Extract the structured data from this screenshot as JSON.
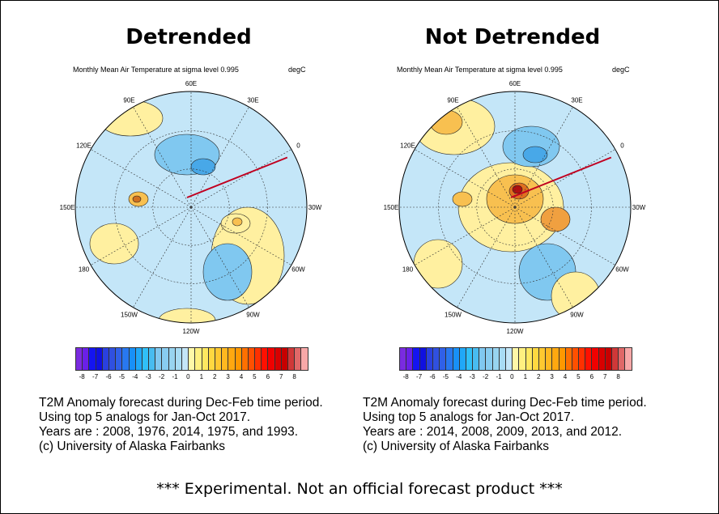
{
  "panels": [
    {
      "title": "Detrended",
      "subtitle": "Monthly Mean Air Temperature at sigma level 0.995",
      "units": "degC",
      "caption": [
        "T2M Anomaly forecast during Dec-Feb time period.",
        "Using top 5 analogs for Jan-Oct 2017.",
        "Years are : 2008, 1976, 2014, 1975, and 1993.",
        "(c) University of Alaska Fairbanks"
      ]
    },
    {
      "title": "Not Detrended",
      "subtitle": "Monthly Mean Air Temperature at sigma level 0.995",
      "units": "degC",
      "caption": [
        "T2M Anomaly forecast during Dec-Feb time period.",
        "Using top 5 analogs for Jan-Oct 2017.",
        "Years are : 2014, 2008, 2009, 2013, and 2012.",
        "(c) University of Alaska Fairbanks"
      ]
    }
  ],
  "longitude_labels": [
    "60E",
    "30E",
    "0",
    "30W",
    "60W",
    "90W",
    "120W",
    "150W",
    "180",
    "150E",
    "120E",
    "90E"
  ],
  "colorbar": {
    "ticks": [
      "-8",
      "-7",
      "-6",
      "-5",
      "-4",
      "-3",
      "-2",
      "-1",
      "0",
      "1",
      "2",
      "3",
      "4",
      "5",
      "6",
      "7",
      "8"
    ],
    "colors": [
      "#7a2be0",
      "#6a20e8",
      "#1414f0",
      "#1010e0",
      "#2a40e0",
      "#3050e0",
      "#3060e8",
      "#2878f0",
      "#1890f8",
      "#20a8f8",
      "#30c0f8",
      "#48bcf0",
      "#80c8f0",
      "#88ccf0",
      "#98d4f0",
      "#a8dcf4",
      "#c4e6f8",
      "#fff8a8",
      "#fff080",
      "#ffe860",
      "#ffd840",
      "#ffc830",
      "#ffb820",
      "#ffa810",
      "#ff9800",
      "#ff7000",
      "#ff5000",
      "#ff3000",
      "#ff1000",
      "#f00000",
      "#d80000",
      "#c80000",
      "#d03838",
      "#e06868",
      "#f8a8a8"
    ]
  },
  "footer": "*** Experimental. Not an official forecast product ***"
}
